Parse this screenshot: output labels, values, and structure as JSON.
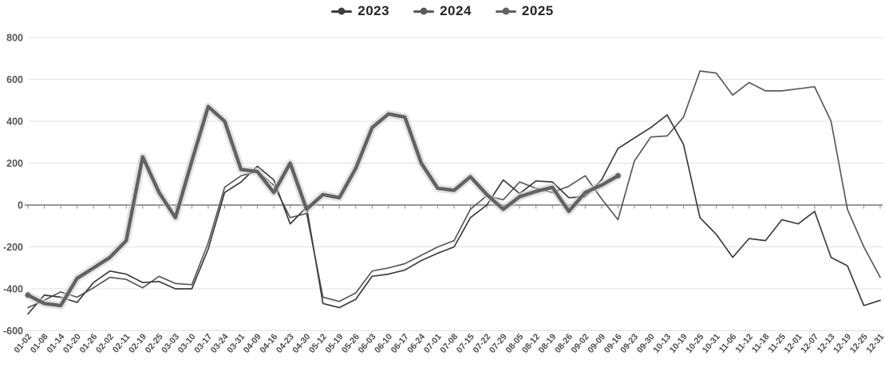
{
  "chart_data": {
    "type": "line",
    "title": "",
    "xlabel": "",
    "ylabel": "",
    "ylim": [
      -600,
      800
    ],
    "yticks": [
      800,
      600,
      400,
      200,
      0,
      -200,
      -400,
      -600
    ],
    "grid": true,
    "legend_position": "top-center",
    "background": "#ffffff",
    "gridline_color": "#e0e0e0",
    "zero_axis_color": "#8a8a8a",
    "axis_label_color": "#555555",
    "x_labels": [
      "01-02",
      "01-08",
      "01-14",
      "01-20",
      "01-26",
      "02-02",
      "02-11",
      "02-19",
      "02-25",
      "03-03",
      "03-10",
      "03-17",
      "03-24",
      "03-31",
      "04-09",
      "04-16",
      "04-23",
      "04-30",
      "05-12",
      "05-19",
      "05-26",
      "06-03",
      "06-10",
      "06-17",
      "06-24",
      "07-01",
      "07-08",
      "07-15",
      "07-22",
      "07-29",
      "08-05",
      "08-12",
      "08-19",
      "08-26",
      "09-02",
      "09-09",
      "09-16",
      "09-23",
      "09-30",
      "10-13",
      "10-19",
      "10-25",
      "10-31",
      "11-06",
      "11-12",
      "11-18",
      "11-25",
      "12-01",
      "12-07",
      "12-13",
      "12-19",
      "12-25",
      "12-31"
    ],
    "series": [
      {
        "name": "2024",
        "color": "#5a5a5a",
        "thick": false,
        "values": [
          -490,
          -455,
          -415,
          -440,
          -395,
          -345,
          -355,
          -395,
          -340,
          -375,
          -380,
          -180,
          85,
          140,
          160,
          95,
          -60,
          -40,
          -440,
          -460,
          -420,
          -315,
          -300,
          -280,
          -240,
          -200,
          -170,
          -20,
          45,
          25,
          110,
          80,
          60,
          90,
          140,
          30,
          -70,
          210,
          325,
          330,
          420,
          640,
          630,
          525,
          585,
          545,
          545,
          555,
          565,
          400,
          -20,
          -200,
          -345
        ]
      },
      {
        "name": "2023",
        "color": "#3d3d3d",
        "thick": false,
        "values": [
          -520,
          -430,
          -440,
          -465,
          -370,
          -315,
          -330,
          -370,
          -365,
          -400,
          -400,
          -210,
          60,
          110,
          185,
          120,
          -90,
          -10,
          -470,
          -490,
          -450,
          -340,
          -330,
          -310,
          -265,
          -230,
          -200,
          -60,
          0,
          120,
          55,
          115,
          110,
          35,
          40,
          120,
          270,
          320,
          370,
          430,
          290,
          -60,
          -140,
          -250,
          -160,
          -170,
          -70,
          -90,
          -30,
          -250,
          -290,
          -480,
          -455
        ]
      },
      {
        "name": "2025",
        "color": "#626262",
        "halo_color": "#cccccc",
        "thick": true,
        "endpoint_dot": true,
        "values": [
          -430,
          -470,
          -480,
          -350,
          -300,
          -250,
          -170,
          230,
          60,
          -60,
          210,
          470,
          400,
          170,
          160,
          60,
          200,
          -20,
          50,
          35,
          175,
          370,
          435,
          420,
          200,
          80,
          70,
          135,
          50,
          -20,
          40,
          65,
          85,
          -30,
          60,
          95,
          140,
          null,
          null,
          null,
          null,
          null,
          null,
          null,
          null,
          null,
          null,
          null,
          null,
          null,
          null,
          null,
          null
        ]
      }
    ],
    "legend_order": [
      "2023",
      "2024",
      "2025"
    ]
  }
}
